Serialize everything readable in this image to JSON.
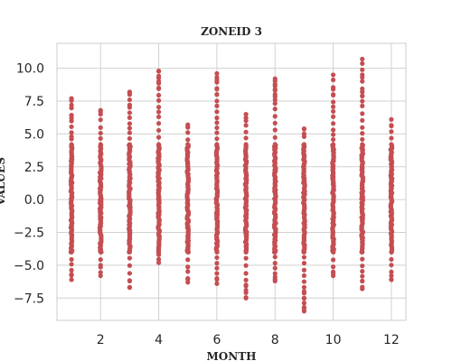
{
  "chart_data": {
    "type": "scatter",
    "title": "ZONEID 3",
    "xlabel": "MONTH",
    "ylabel": "VALUES",
    "xlim": [
      0.5,
      12.5
    ],
    "ylim": [
      -9.2,
      11.9
    ],
    "xticks": [
      2,
      4,
      6,
      8,
      10,
      12
    ],
    "yticks": [
      -7.5,
      -5.0,
      -2.5,
      0.0,
      2.5,
      5.0,
      7.5,
      10.0
    ],
    "ytick_labels": [
      "−7.5",
      "−5.0",
      "−2.5",
      "0.0",
      "2.5",
      "5.0",
      "7.5",
      "10.0"
    ],
    "grid": true,
    "marker_color": "#c44e52",
    "series": [
      {
        "points_by_month": [
          {
            "x": 1,
            "y_min": -6.1,
            "y_max": 7.7,
            "outliers": [
              7.7,
              7.2,
              6.4,
              6.2,
              4.8,
              -5.7,
              -6.1
            ]
          },
          {
            "x": 2,
            "y_min": -5.8,
            "y_max": 6.8,
            "outliers": [
              6.8,
              6.5,
              -5.0,
              -5.8
            ]
          },
          {
            "x": 3,
            "y_min": -6.7,
            "y_max": 8.2,
            "outliers": [
              8.2,
              8.0,
              7.2,
              -6.2,
              -6.7
            ]
          },
          {
            "x": 4,
            "y_min": -4.8,
            "y_max": 9.8,
            "outliers": [
              9.8,
              9.4,
              9.0,
              8.5,
              -4.2,
              -4.8
            ]
          },
          {
            "x": 5,
            "y_min": -6.3,
            "y_max": 5.7,
            "outliers": [
              5.7,
              5.5,
              -6.0,
              -6.3
            ]
          },
          {
            "x": 6,
            "y_min": -6.4,
            "y_max": 9.6,
            "outliers": [
              9.6,
              9.1,
              8.4,
              8.0,
              -6.0,
              -6.4
            ]
          },
          {
            "x": 7,
            "y_min": -7.5,
            "y_max": 6.5,
            "outliers": [
              6.5,
              6.0,
              -6.5,
              -6.9,
              -7.5
            ]
          },
          {
            "x": 8,
            "y_min": -6.2,
            "y_max": 9.2,
            "outliers": [
              9.2,
              8.8,
              8.4,
              8.0,
              7.6,
              -5.9,
              -6.2
            ]
          },
          {
            "x": 9,
            "y_min": -8.5,
            "y_max": 5.4,
            "outliers": [
              5.4,
              5.0,
              -7.0,
              -7.5,
              -8.2,
              -8.5
            ]
          },
          {
            "x": 10,
            "y_min": -5.8,
            "y_max": 9.5,
            "outliers": [
              9.5,
              8.4,
              8.0,
              -5.5,
              -5.8
            ]
          },
          {
            "x": 11,
            "y_min": -6.8,
            "y_max": 10.7,
            "outliers": [
              10.7,
              9.3,
              8.2,
              7.9,
              -6.2,
              -6.8
            ]
          },
          {
            "x": 12,
            "y_min": -6.1,
            "y_max": 6.1,
            "outliers": [
              6.1,
              5.6,
              -5.8,
              -6.1
            ]
          }
        ]
      }
    ]
  }
}
